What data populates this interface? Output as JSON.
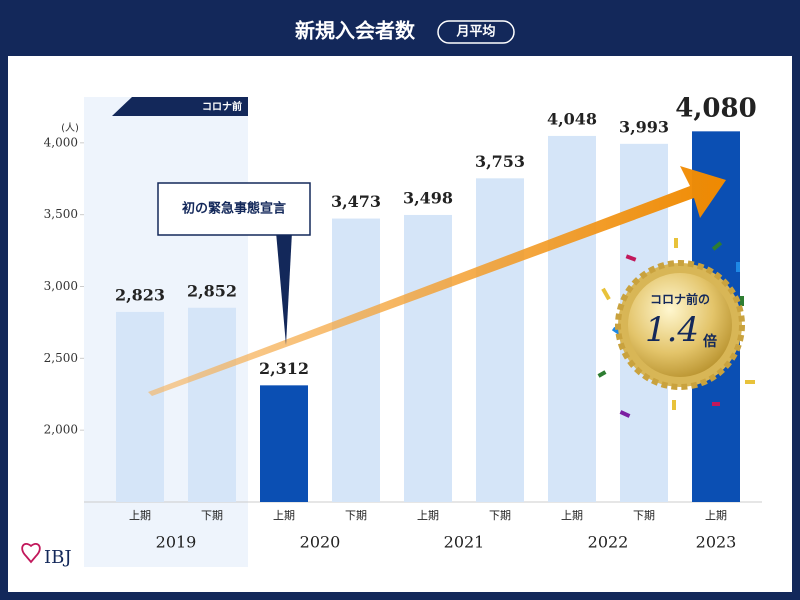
{
  "chart_data": {
    "type": "bar",
    "title": "新規入会者数",
    "subtitle": "月平均",
    "y_unit": "(人)",
    "categories": [
      "上期",
      "下期",
      "上期",
      "下期",
      "上期",
      "下期",
      "上期",
      "下期",
      "上期"
    ],
    "years": [
      "2019",
      "2020",
      "2021",
      "2022",
      "2023"
    ],
    "values": [
      2823,
      2852,
      2312,
      3473,
      3498,
      3753,
      4048,
      3993,
      4080
    ],
    "value_labels": [
      "2,823",
      "2,852",
      "2,312",
      "3,473",
      "3,498",
      "3,753",
      "4,048",
      "3,993",
      "4,080"
    ],
    "colors": [
      "#d5e5f8",
      "#d5e5f8",
      "#0b4fb3",
      "#d5e5f8",
      "#d5e5f8",
      "#d5e5f8",
      "#d5e5f8",
      "#d5e5f8",
      "#0b4fb3"
    ],
    "ylim": [
      1500,
      4500
    ],
    "yticks": [
      {
        "value": 2000,
        "label": "2,000"
      },
      {
        "value": 2500,
        "label": "2,500"
      },
      {
        "value": 3000,
        "label": "3,000"
      },
      {
        "value": 3500,
        "label": "3,500"
      },
      {
        "value": 4000,
        "label": "4,000"
      }
    ],
    "annotations": {
      "pre_covid": "コロナ前",
      "emergency": "初の緊急事態宣言",
      "medal_top": "コロナ前の",
      "medal_ratio": "1.4",
      "medal_unit": "倍"
    },
    "logo": "IBJ"
  }
}
